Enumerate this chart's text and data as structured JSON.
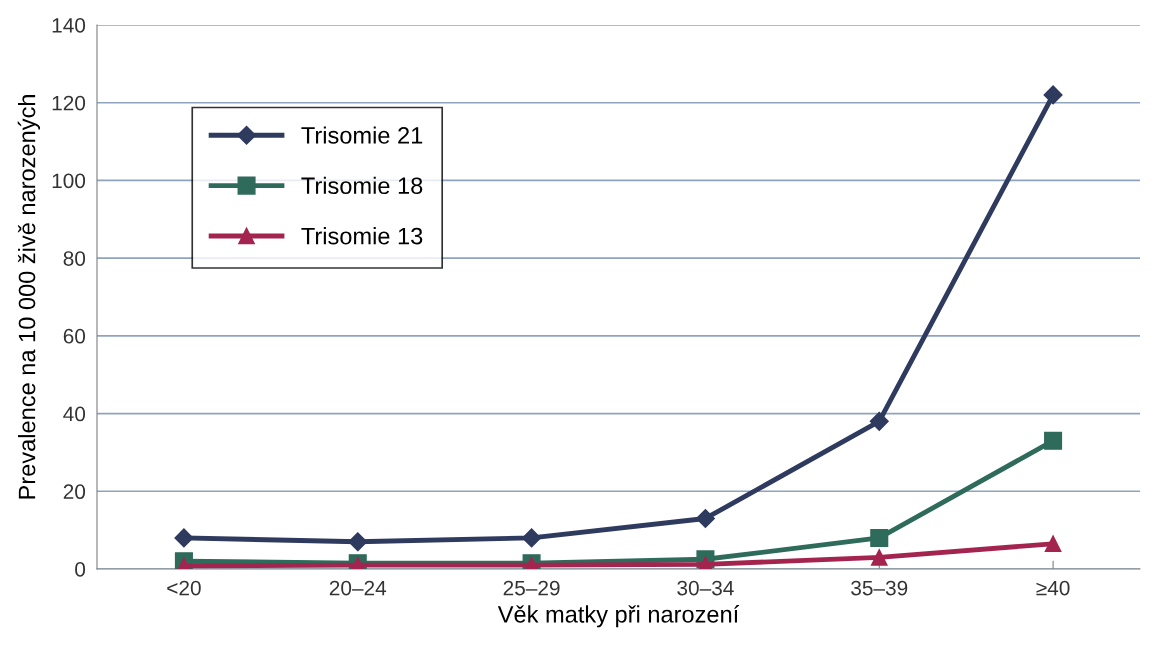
{
  "chart_data": {
    "type": "line",
    "xlabel": "Věk matky při narození",
    "ylabel": "Prevalence na 10 000 živě narozených",
    "categories": [
      "<20",
      "20–24",
      "25–29",
      "30–34",
      "35–39",
      "≥40"
    ],
    "series": [
      {
        "name": "Trisomie 21",
        "color": "#2e3a5e",
        "marker": "diamond",
        "values": [
          8,
          7,
          8,
          13,
          38,
          122
        ]
      },
      {
        "name": "Trisomie 18",
        "color": "#2f6b5a",
        "marker": "square",
        "values": [
          2,
          1.5,
          1.5,
          2.5,
          8,
          33
        ]
      },
      {
        "name": "Trisomie 13",
        "color": "#a3254f",
        "marker": "triangle",
        "values": [
          0.8,
          1,
          1,
          1.2,
          3,
          6.5
        ]
      }
    ],
    "ylim": [
      0,
      140
    ],
    "yticks": [
      0,
      20,
      40,
      60,
      80,
      100,
      120,
      140
    ],
    "grid": "y",
    "legend": "top left",
    "line_style": "solid"
  }
}
